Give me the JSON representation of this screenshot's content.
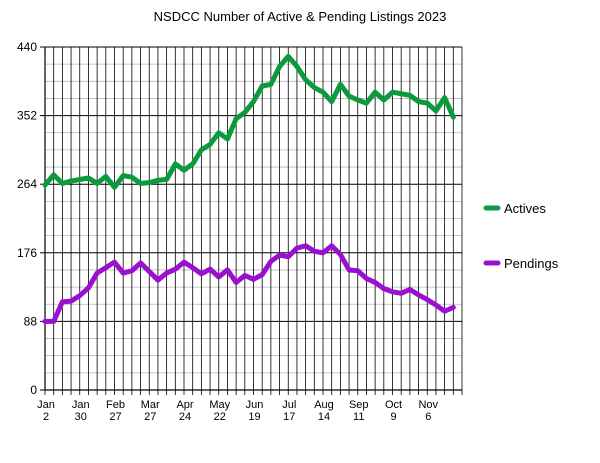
{
  "chart_data": {
    "type": "line",
    "title": "NSDCC Number of Active & Pending Listings 2023",
    "xlabel": "",
    "ylabel": "",
    "ylim": [
      0,
      440
    ],
    "yticks": [
      0,
      88,
      176,
      264,
      352,
      440
    ],
    "grid": true,
    "legend_position": "right",
    "x_tick_labels": [
      {
        "index": 0,
        "month": "Jan",
        "day": "2"
      },
      {
        "index": 4,
        "month": "Jan",
        "day": "30"
      },
      {
        "index": 8,
        "month": "Feb",
        "day": "27"
      },
      {
        "index": 12,
        "month": "Mar",
        "day": "27"
      },
      {
        "index": 16,
        "month": "Apr",
        "day": "24"
      },
      {
        "index": 20,
        "month": "May",
        "day": "22"
      },
      {
        "index": 24,
        "month": "Jun",
        "day": "19"
      },
      {
        "index": 28,
        "month": "Jul",
        "day": "17"
      },
      {
        "index": 32,
        "month": "Aug",
        "day": "14"
      },
      {
        "index": 36,
        "month": "Sep",
        "day": "11"
      },
      {
        "index": 40,
        "month": "Oct",
        "day": "9"
      },
      {
        "index": 44,
        "month": "Nov",
        "day": "6"
      }
    ],
    "num_weeks": 48,
    "series": [
      {
        "name": "Actives",
        "color": "#0b9a3c",
        "values": [
          263,
          276,
          265,
          268,
          270,
          272,
          265,
          274,
          260,
          275,
          273,
          265,
          266,
          269,
          270,
          290,
          282,
          290,
          308,
          315,
          330,
          322,
          348,
          356,
          370,
          390,
          392,
          415,
          428,
          415,
          398,
          388,
          382,
          370,
          392,
          377,
          372,
          368,
          382,
          372,
          382,
          380,
          378,
          370,
          368,
          358,
          375,
          350
        ]
      },
      {
        "name": "Pendings",
        "color": "#9b0fd0",
        "values": [
          88,
          88,
          113,
          114,
          121,
          131,
          150,
          157,
          164,
          150,
          153,
          163,
          152,
          141,
          150,
          155,
          164,
          157,
          149,
          155,
          145,
          154,
          138,
          147,
          142,
          148,
          165,
          173,
          171,
          182,
          185,
          178,
          176,
          185,
          174,
          154,
          153,
          143,
          138,
          130,
          126,
          124,
          129,
          122,
          116,
          109,
          101,
          106
        ]
      }
    ]
  }
}
